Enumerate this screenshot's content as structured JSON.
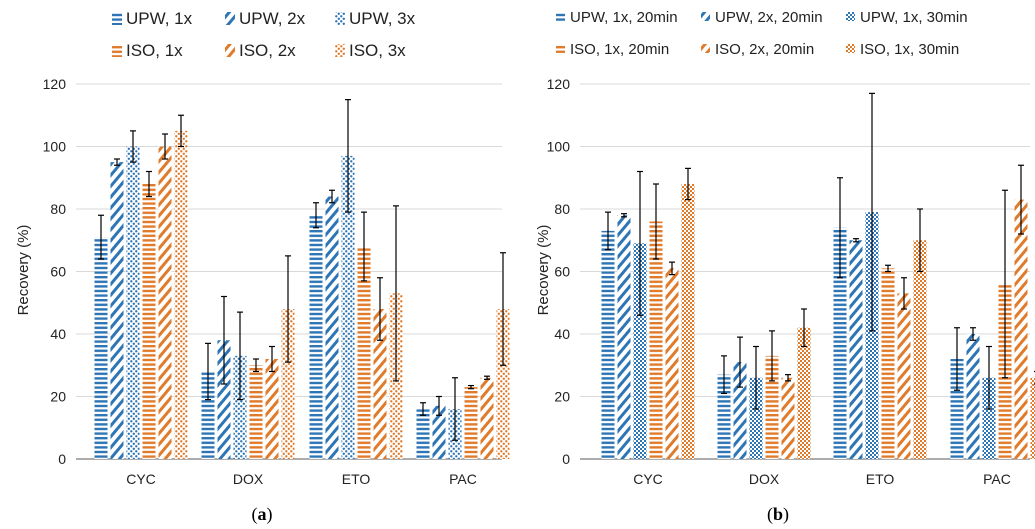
{
  "colors": {
    "upw": "#2E75B6",
    "iso": "#E07B2C"
  },
  "figures": [
    {
      "panel_label": "(a)",
      "panel_letter": "a"
    },
    {
      "panel_label": "(b)",
      "panel_letter": "b"
    }
  ],
  "chart_data": [
    {
      "type": "bar",
      "ylabel": "Recovery (%)",
      "ylim": [
        0,
        120
      ],
      "yticks": [
        0,
        20,
        40,
        60,
        80,
        100,
        120
      ],
      "grid": true,
      "legend": "top",
      "categories": [
        "CYC",
        "DOX",
        "ETO",
        "PAC"
      ],
      "series": [
        {
          "name": "UPW, 1x",
          "color": "#2E75B6",
          "pattern": "horizontal-lines",
          "values": [
            71,
            28,
            78,
            16
          ],
          "errors": [
            7,
            9,
            4,
            2
          ]
        },
        {
          "name": "UPW, 2x",
          "color": "#2E75B6",
          "pattern": "diagonal-lines",
          "values": [
            95,
            38,
            84,
            17
          ],
          "errors": [
            1,
            14,
            2,
            3
          ]
        },
        {
          "name": "UPW, 3x",
          "color": "#2E75B6",
          "pattern": "dots",
          "values": [
            100,
            33,
            97,
            16
          ],
          "errors": [
            5,
            14,
            18,
            10
          ]
        },
        {
          "name": "ISO, 1x",
          "color": "#E07B2C",
          "pattern": "horizontal-lines",
          "values": [
            88,
            30,
            68,
            23
          ],
          "errors": [
            4,
            2,
            11,
            0.5
          ]
        },
        {
          "name": "ISO, 2x",
          "color": "#E07B2C",
          "pattern": "diagonal-lines",
          "values": [
            100,
            32,
            48,
            26
          ],
          "errors": [
            4,
            4,
            10,
            0.5
          ]
        },
        {
          "name": "ISO, 3x",
          "color": "#E07B2C",
          "pattern": "dots",
          "values": [
            105,
            48,
            53,
            48
          ],
          "errors": [
            5,
            17,
            28,
            18
          ]
        }
      ]
    },
    {
      "type": "bar",
      "ylabel": "Recovery (%)",
      "ylim": [
        0,
        120
      ],
      "yticks": [
        0,
        20,
        40,
        60,
        80,
        100,
        120
      ],
      "grid": true,
      "legend": "top",
      "categories": [
        "CYC",
        "DOX",
        "ETO",
        "PAC"
      ],
      "series": [
        {
          "name": "UPW, 1x, 20min",
          "color": "#2E75B6",
          "pattern": "horizontal-lines",
          "values": [
            73,
            27,
            74,
            32
          ],
          "errors": [
            6,
            6,
            16,
            10
          ]
        },
        {
          "name": "UPW, 2x, 20min",
          "color": "#2E75B6",
          "pattern": "diagonal-lines",
          "values": [
            78,
            31,
            70,
            40
          ],
          "errors": [
            0.5,
            8,
            0.5,
            2
          ]
        },
        {
          "name": "UPW, 1x, 30min",
          "color": "#2E75B6",
          "pattern": "checker",
          "values": [
            69,
            26,
            79,
            26
          ],
          "errors": [
            23,
            10,
            38,
            10
          ]
        },
        {
          "name": "ISO, 1x, 20min",
          "color": "#E07B2C",
          "pattern": "horizontal-lines",
          "values": [
            76,
            33,
            61,
            56
          ],
          "errors": [
            12,
            8,
            1,
            30
          ]
        },
        {
          "name": "ISO, 2x, 20min",
          "color": "#E07B2C",
          "pattern": "diagonal-lines",
          "values": [
            61,
            26,
            53,
            83
          ],
          "errors": [
            2,
            1,
            5,
            11
          ]
        },
        {
          "name": "ISO, 1x, 30min",
          "color": "#E07B2C",
          "pattern": "checker",
          "values": [
            88,
            42,
            70,
            26
          ],
          "errors": [
            5,
            6,
            10,
            2
          ]
        }
      ]
    }
  ]
}
